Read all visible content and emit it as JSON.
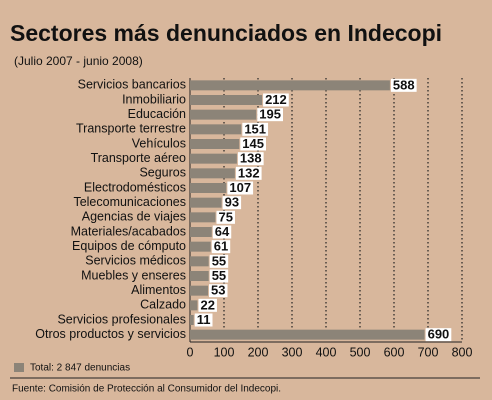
{
  "chart_data": {
    "type": "bar",
    "orientation": "horizontal",
    "title": "Sectores más denunciados en Indecopi",
    "subtitle": "(Julio 2007 - junio 2008)",
    "categories": [
      "Servicios bancarios",
      "Inmobiliario",
      "Educación",
      "Transporte terrestre",
      "Vehículos",
      "Transporte aéreo",
      "Seguros",
      "Electrodomésticos",
      "Telecomunicaciones",
      "Agencias de viajes",
      "Materiales/acabados",
      "Equipos de cómputo",
      "Servicios médicos",
      "Muebles y enseres",
      "Alimentos",
      "Calzado",
      "Servicios profesionales",
      "Otros productos y servicios"
    ],
    "values": [
      588,
      212,
      195,
      151,
      145,
      138,
      132,
      107,
      93,
      75,
      64,
      61,
      55,
      55,
      53,
      22,
      11,
      690
    ],
    "color": "#8c8478",
    "xlim": [
      0,
      800
    ],
    "xticks": [
      0,
      100,
      200,
      300,
      400,
      500,
      600,
      700,
      800
    ],
    "grid": true,
    "legend": "Total: 2 847 denuncias",
    "source": "Fuente: Comisión de Protección al Consumidor del Indecopi."
  }
}
